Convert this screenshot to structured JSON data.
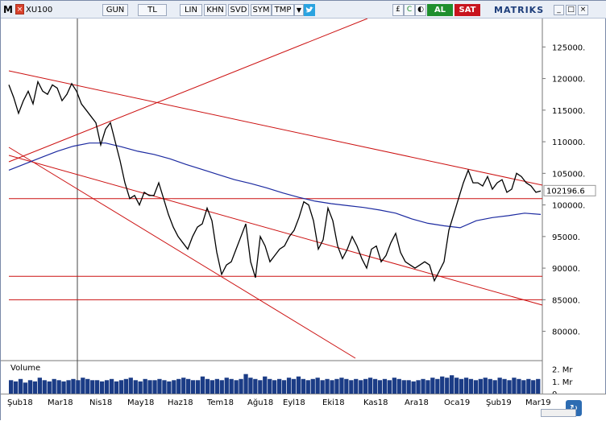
{
  "toolbar": {
    "logo": "M",
    "close_glyph": "×",
    "symbol": "XU100",
    "buttons": [
      "GUN",
      "TL",
      "LIN",
      "KHN",
      "SVD",
      "SYM",
      "TMP"
    ],
    "dropdown_glyph": "▼",
    "twitter_icon": "twitter-icon",
    "icons": [
      "£",
      "C",
      "◐"
    ],
    "buy": "AL",
    "sell": "SAT",
    "brand": "MATRIKS",
    "window_buttons": [
      "_",
      "□",
      "×"
    ]
  },
  "chart_data": {
    "type": "line",
    "title": "",
    "symbol": "XU100",
    "y_ticks": [
      80000,
      85000,
      90000,
      95000,
      100000,
      105000,
      110000,
      115000,
      120000,
      125000
    ],
    "y_tick_labels": [
      "80000.",
      "85000.",
      "90000.",
      "95000.",
      "100000.",
      "105000.",
      "110000.",
      "115000.",
      "120000.",
      "125000."
    ],
    "ylim": [
      76000,
      129500
    ],
    "last_value": 102196.6,
    "last_value_label": "102196.6",
    "x_labels": [
      "Şub18",
      "Mar18",
      "Nis18",
      "May18",
      "Haz18",
      "Tem18",
      "Ağu18",
      "Eyl18",
      "Eki18",
      "Kas18",
      "Ara18",
      "Oca19",
      "Şub19",
      "Mar19"
    ],
    "series": [
      {
        "role": "price",
        "x": [
          0,
          6,
          12,
          18,
          24,
          30,
          36,
          42,
          48,
          54,
          60,
          66,
          72,
          78,
          84,
          90,
          96,
          102,
          108,
          114,
          120,
          126,
          132,
          138,
          144,
          150,
          156,
          162,
          168,
          174,
          180,
          186,
          192,
          198,
          204,
          210,
          216,
          222,
          228,
          234,
          240,
          246,
          252,
          258,
          264,
          270,
          276,
          282,
          288,
          294,
          300,
          306,
          312,
          318,
          324,
          330,
          336,
          342,
          348,
          354,
          360,
          366,
          372,
          378,
          384,
          390,
          396,
          402,
          408,
          414,
          420,
          426,
          432,
          438,
          444,
          450,
          456,
          462,
          468,
          474,
          480,
          486,
          492,
          498,
          504,
          510,
          516,
          522,
          528,
          534,
          540,
          546,
          552,
          558,
          564,
          570,
          576,
          582,
          588,
          594,
          600,
          606,
          612,
          618,
          624,
          630,
          636,
          642,
          648,
          654,
          660
        ],
        "values": [
          119000,
          117000,
          114500,
          116500,
          118000,
          116000,
          119500,
          118000,
          117500,
          119000,
          118500,
          116500,
          117500,
          119200,
          118000,
          116000,
          115000,
          114000,
          113000,
          109500,
          112000,
          113000,
          110000,
          107000,
          103500,
          101000,
          101500,
          100000,
          102000,
          101500,
          101500,
          103500,
          101000,
          98500,
          96500,
          95000,
          94000,
          93000,
          95000,
          96500,
          97000,
          99500,
          97500,
          92500,
          89000,
          90500,
          91000,
          93000,
          95000,
          97000,
          91000,
          88500,
          95000,
          93500,
          91000,
          92000,
          93000,
          93500,
          95000,
          96000,
          98000,
          100500,
          100000,
          97500,
          93000,
          94500,
          99500,
          97500,
          93500,
          91500,
          93000,
          95000,
          93500,
          91500,
          90000,
          93000,
          93500,
          91000,
          92000,
          94000,
          95500,
          92500,
          91000,
          90500,
          90000,
          90500,
          91000,
          90500,
          88000,
          89500,
          91000,
          96000,
          98500,
          101000,
          103500,
          105500,
          103500,
          103500,
          103000,
          104500,
          102500,
          103500,
          104000,
          102000,
          102500,
          105000,
          104500,
          103500,
          103000,
          102000,
          102196.6
        ]
      },
      {
        "role": "moving average",
        "x": [
          0,
          20,
          40,
          60,
          80,
          100,
          120,
          140,
          160,
          180,
          200,
          220,
          240,
          260,
          280,
          300,
          320,
          340,
          360,
          380,
          400,
          420,
          440,
          460,
          480,
          500,
          520,
          540,
          560,
          580,
          600,
          620,
          640,
          660
        ],
        "values": [
          105500,
          106500,
          107500,
          108500,
          109300,
          109800,
          109800,
          109200,
          108500,
          108000,
          107300,
          106400,
          105600,
          104800,
          104000,
          103400,
          102700,
          101900,
          101200,
          100600,
          100200,
          99900,
          99600,
          99200,
          98700,
          97800,
          97100,
          96700,
          96400,
          97500,
          98000,
          98300,
          98700,
          98500
        ]
      }
    ],
    "horizontal_lines": [
      101000,
      88700,
      85000
    ],
    "volume": {
      "label": "Volume",
      "ticks": [
        "2. Mr",
        "1. Mr",
        "0."
      ],
      "values": [
        1.1,
        1.0,
        1.2,
        0.9,
        1.1,
        1.0,
        1.3,
        1.1,
        1.0,
        1.2,
        1.1,
        1.0,
        1.1,
        1.2,
        1.1,
        1.3,
        1.2,
        1.1,
        1.1,
        1.0,
        1.1,
        1.2,
        1.0,
        1.1,
        1.2,
        1.3,
        1.1,
        1.0,
        1.2,
        1.1,
        1.1,
        1.2,
        1.1,
        1.0,
        1.1,
        1.2,
        1.3,
        1.2,
        1.1,
        1.1,
        1.4,
        1.2,
        1.1,
        1.2,
        1.1,
        1.3,
        1.2,
        1.1,
        1.2,
        1.6,
        1.3,
        1.2,
        1.1,
        1.4,
        1.2,
        1.1,
        1.2,
        1.1,
        1.3,
        1.2,
        1.4,
        1.2,
        1.1,
        1.2,
        1.3,
        1.1,
        1.2,
        1.1,
        1.2,
        1.3,
        1.2,
        1.1,
        1.2,
        1.1,
        1.2,
        1.3,
        1.2,
        1.1,
        1.2,
        1.1,
        1.3,
        1.2,
        1.1,
        1.1,
        1.0,
        1.1,
        1.2,
        1.1,
        1.3,
        1.2,
        1.4,
        1.3,
        1.5,
        1.3,
        1.2,
        1.3,
        1.2,
        1.1,
        1.2,
        1.3,
        1.2,
        1.1,
        1.3,
        1.2,
        1.1,
        1.3,
        1.2,
        1.1,
        1.2,
        1.1,
        1.2
      ],
      "ylim": [
        0,
        2.5
      ]
    },
    "colors": {
      "price": "#000000",
      "moving_average": "#1c2aa0",
      "trendline": "#cc1111",
      "volume": "#1b3c86"
    },
    "grid": false
  },
  "footer": {
    "nav_icon": "refresh-icon"
  }
}
